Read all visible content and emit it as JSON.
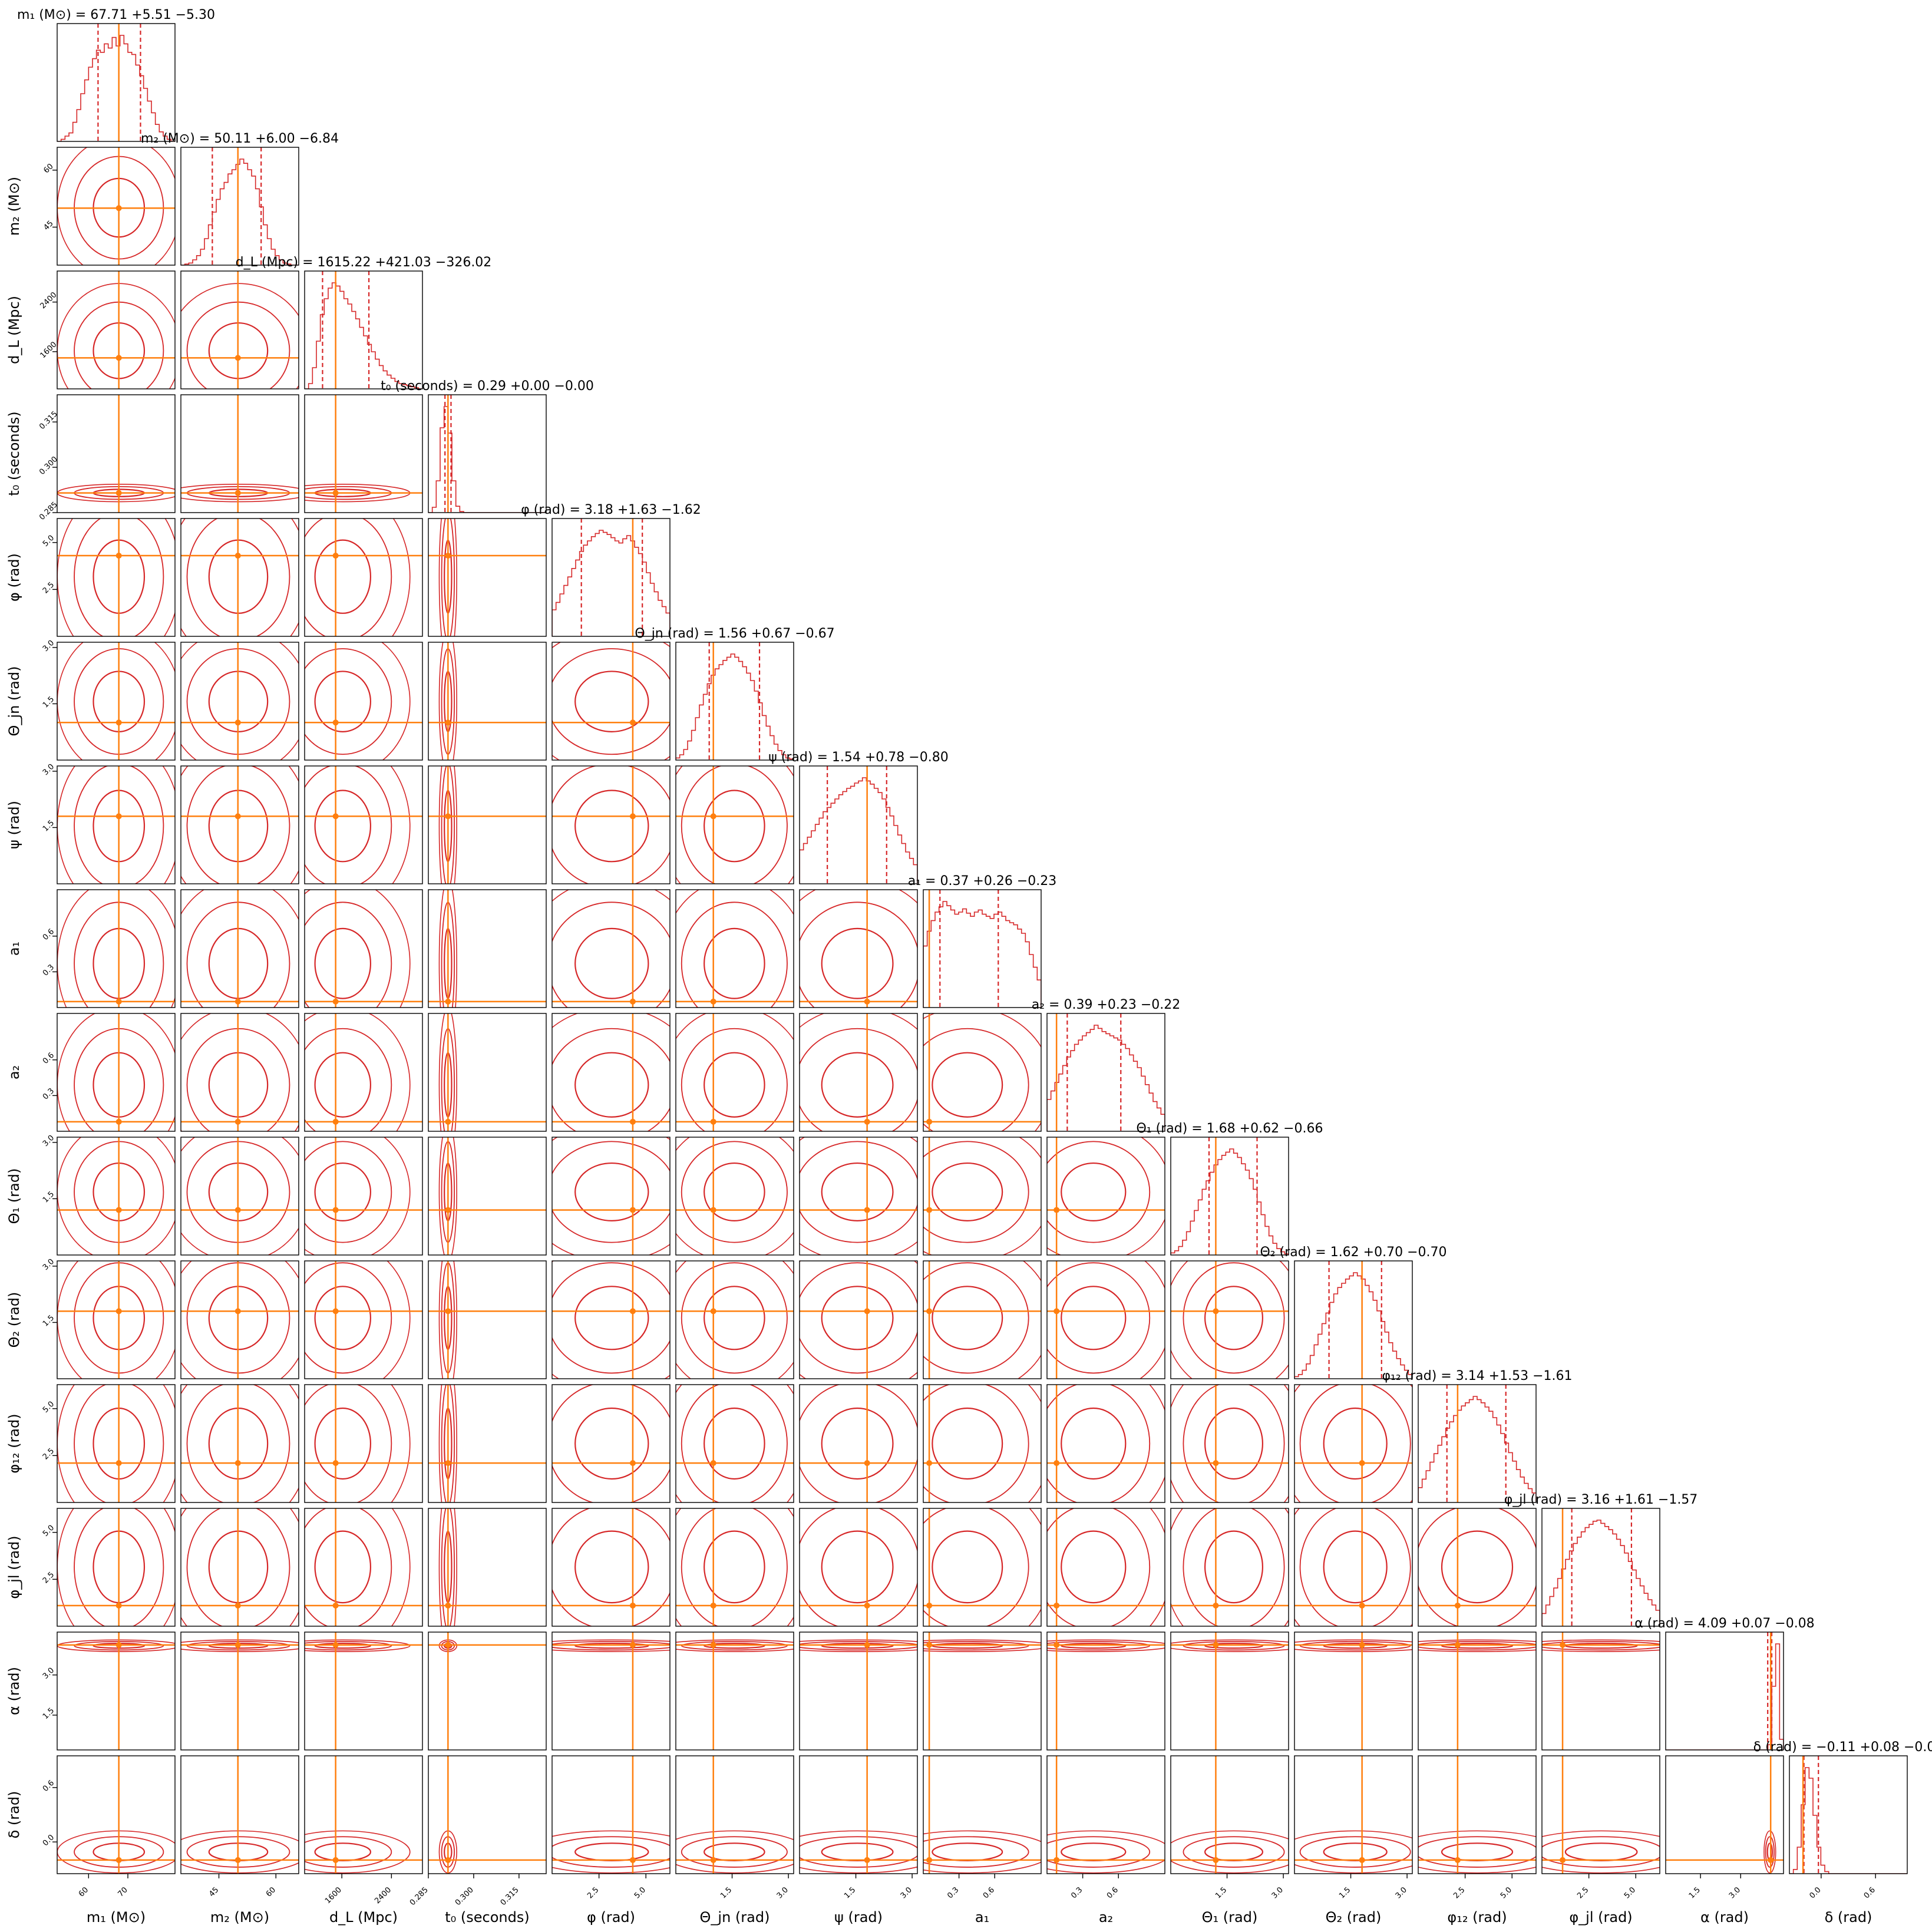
{
  "chart_data": {
    "type": "corner",
    "colors": {
      "posterior": "#d62728",
      "truth": "#ff7f0e",
      "frame": "#000000"
    },
    "parameters": [
      {
        "axis_label": "m₁ (M⊙)",
        "title": "m₁ (M⊙) = 67.71 +5.51 −5.30",
        "range": [
          52,
          82
        ],
        "ticks": [
          60,
          70
        ],
        "tick_labels": [
          "60",
          "70"
        ],
        "median": 67.71,
        "q_low": 62.41,
        "q_high": 73.22,
        "truth": 67.7,
        "hist": [
          0,
          0.02,
          0.05,
          0.08,
          0.18,
          0.3,
          0.45,
          0.58,
          0.7,
          0.78,
          0.86,
          0.84,
          0.92,
          0.88,
          0.98,
          0.9,
          1.0,
          0.92,
          0.84,
          0.82,
          0.72,
          0.62,
          0.5,
          0.38,
          0.27,
          0.16,
          0.09,
          0.05,
          0.02,
          0
        ]
      },
      {
        "axis_label": "m₂ (M⊙)",
        "title": "m₂ (M⊙) = 50.11 +6.00 −6.84",
        "range": [
          35,
          66
        ],
        "ticks": [
          45,
          60
        ],
        "tick_labels": [
          "45",
          "60"
        ],
        "median": 50.11,
        "q_low": 43.27,
        "q_high": 56.11,
        "truth": 50.0,
        "hist": [
          0,
          0.01,
          0.02,
          0.05,
          0.09,
          0.15,
          0.25,
          0.38,
          0.5,
          0.62,
          0.72,
          0.78,
          0.86,
          0.9,
          0.95,
          1.0,
          0.96,
          0.9,
          0.84,
          0.72,
          0.55,
          0.38,
          0.25,
          0.15,
          0.09,
          0.05,
          0.02,
          0.01,
          0,
          0
        ]
      },
      {
        "axis_label": "d_L (Mpc)",
        "title": "d_L (Mpc) = 1615.22 +421.03 −326.02",
        "range": [
          1000,
          2900
        ],
        "ticks": [
          1600,
          2400
        ],
        "tick_labels": [
          "1600",
          "2400"
        ],
        "median": 1615.22,
        "q_low": 1289.2,
        "q_high": 2036.25,
        "truth": 1500,
        "hist": [
          0,
          0.05,
          0.2,
          0.45,
          0.7,
          0.85,
          0.95,
          1.0,
          0.97,
          0.92,
          0.85,
          0.8,
          0.73,
          0.66,
          0.58,
          0.5,
          0.42,
          0.35,
          0.28,
          0.22,
          0.17,
          0.13,
          0.1,
          0.07,
          0.05,
          0.04,
          0.03,
          0.02,
          0.01,
          0
        ]
      },
      {
        "axis_label": "t₀ (seconds)",
        "title": "t₀ (seconds) = 0.29 +0.00 −0.00",
        "range": [
          0.285,
          0.324
        ],
        "ticks": [
          0.285,
          0.3,
          0.315
        ],
        "tick_labels": [
          "0.285",
          "0.300",
          "0.315"
        ],
        "median": 0.2915,
        "q_low": 0.2905,
        "q_high": 0.2925,
        "truth": 0.2915,
        "hist": [
          0,
          0.05,
          0.3,
          0.8,
          1.0,
          0.75,
          0.3,
          0.06,
          0.01,
          0,
          0,
          0,
          0,
          0,
          0,
          0,
          0,
          0,
          0,
          0,
          0,
          0,
          0,
          0,
          0,
          0,
          0,
          0,
          0,
          0
        ]
      },
      {
        "axis_label": "φ (rad)",
        "title": "φ (rad) = 3.18 +1.63 −1.62",
        "range": [
          0,
          6.28
        ],
        "ticks": [
          2.5,
          5.0
        ],
        "tick_labels": [
          "2.5",
          "5.0"
        ],
        "median": 3.18,
        "q_low": 1.56,
        "q_high": 4.81,
        "truth": 4.3,
        "hist": [
          0.25,
          0.32,
          0.4,
          0.48,
          0.56,
          0.64,
          0.72,
          0.8,
          0.86,
          0.9,
          0.94,
          0.97,
          1.0,
          0.98,
          0.96,
          0.93,
          0.9,
          0.88,
          0.92,
          0.95,
          0.9,
          0.84,
          0.78,
          0.7,
          0.6,
          0.5,
          0.42,
          0.34,
          0.28,
          0.22
        ]
      },
      {
        "axis_label": "Θ_jn (rad)",
        "title": "Θ_jn (rad) = 1.56 +0.67 −0.67",
        "range": [
          0,
          3.14
        ],
        "ticks": [
          1.5,
          3.0
        ],
        "tick_labels": [
          "1.5",
          "3.0"
        ],
        "median": 1.56,
        "q_low": 0.89,
        "q_high": 2.23,
        "truth": 1.0,
        "hist": [
          0.02,
          0.05,
          0.1,
          0.18,
          0.28,
          0.4,
          0.52,
          0.62,
          0.72,
          0.8,
          0.86,
          0.9,
          0.94,
          0.97,
          1.0,
          0.97,
          0.93,
          0.88,
          0.82,
          0.75,
          0.65,
          0.54,
          0.42,
          0.32,
          0.23,
          0.15,
          0.09,
          0.05,
          0.02,
          0.01
        ]
      },
      {
        "axis_label": "ψ (rad)",
        "title": "ψ (rad) = 1.54 +0.78 −0.80",
        "range": [
          0,
          3.14
        ],
        "ticks": [
          1.5,
          3.0
        ],
        "tick_labels": [
          "1.5",
          "3.0"
        ],
        "median": 1.54,
        "q_low": 0.74,
        "q_high": 2.32,
        "truth": 1.8,
        "hist": [
          0.32,
          0.38,
          0.44,
          0.5,
          0.56,
          0.62,
          0.68,
          0.72,
          0.76,
          0.8,
          0.84,
          0.87,
          0.9,
          0.92,
          0.95,
          0.97,
          1.0,
          0.97,
          0.94,
          0.9,
          0.86,
          0.8,
          0.72,
          0.64,
          0.55,
          0.46,
          0.38,
          0.3,
          0.24,
          0.18
        ]
      },
      {
        "axis_label": "a₁",
        "title": "a₁ = 0.37 +0.26 −0.23",
        "range": [
          0,
          0.99
        ],
        "ticks": [
          0.3,
          0.6
        ],
        "tick_labels": [
          "0.3",
          "0.6"
        ],
        "median": 0.37,
        "q_low": 0.14,
        "q_high": 0.63,
        "truth": 0.05,
        "hist": [
          0.58,
          0.72,
          0.82,
          0.9,
          0.95,
          1.0,
          0.96,
          0.92,
          0.88,
          0.9,
          0.93,
          0.89,
          0.86,
          0.9,
          0.92,
          0.88,
          0.86,
          0.84,
          0.88,
          0.9,
          0.86,
          0.82,
          0.8,
          0.78,
          0.74,
          0.7,
          0.62,
          0.5,
          0.38,
          0.26
        ]
      },
      {
        "axis_label": "a₂",
        "title": "a₂ = 0.39 +0.23 −0.22",
        "range": [
          0,
          0.99
        ],
        "ticks": [
          0.3,
          0.6
        ],
        "tick_labels": [
          "0.3",
          "0.6"
        ],
        "median": 0.39,
        "q_low": 0.17,
        "q_high": 0.62,
        "truth": 0.08,
        "hist": [
          0.3,
          0.38,
          0.46,
          0.54,
          0.62,
          0.7,
          0.76,
          0.82,
          0.86,
          0.9,
          0.93,
          0.96,
          1.0,
          0.97,
          0.94,
          0.92,
          0.9,
          0.88,
          0.86,
          0.82,
          0.78,
          0.72,
          0.66,
          0.6,
          0.52,
          0.44,
          0.36,
          0.28,
          0.22,
          0.16
        ]
      },
      {
        "axis_label": "Θ₁ (rad)",
        "title": "Θ₁ (rad) = 1.68 +0.62 −0.66",
        "range": [
          0,
          3.14
        ],
        "ticks": [
          1.5,
          3.0
        ],
        "tick_labels": [
          "1.5",
          "3.0"
        ],
        "median": 1.68,
        "q_low": 1.02,
        "q_high": 2.3,
        "truth": 1.2,
        "hist": [
          0.02,
          0.04,
          0.08,
          0.14,
          0.22,
          0.32,
          0.42,
          0.52,
          0.62,
          0.7,
          0.78,
          0.85,
          0.9,
          0.94,
          0.97,
          1.0,
          0.96,
          0.92,
          0.86,
          0.8,
          0.72,
          0.62,
          0.5,
          0.38,
          0.27,
          0.18,
          0.11,
          0.06,
          0.03,
          0.01
        ]
      },
      {
        "axis_label": "Θ₂ (rad)",
        "title": "Θ₂ (rad) = 1.62 +0.70 −0.70",
        "range": [
          0,
          3.14
        ],
        "ticks": [
          1.5,
          3.0
        ],
        "tick_labels": [
          "1.5",
          "3.0"
        ],
        "median": 1.62,
        "q_low": 0.92,
        "q_high": 2.32,
        "truth": 1.8,
        "hist": [
          0.02,
          0.04,
          0.08,
          0.14,
          0.22,
          0.32,
          0.42,
          0.52,
          0.62,
          0.72,
          0.8,
          0.86,
          0.9,
          0.94,
          0.97,
          1.0,
          0.97,
          0.94,
          0.88,
          0.82,
          0.74,
          0.64,
          0.54,
          0.44,
          0.34,
          0.26,
          0.19,
          0.13,
          0.08,
          0.04
        ]
      },
      {
        "axis_label": "φ₁₂ (rad)",
        "title": "φ₁₂ (rad) = 3.14 +1.53 −1.61",
        "range": [
          0,
          6.28
        ],
        "ticks": [
          2.5,
          5.0
        ],
        "tick_labels": [
          "2.5",
          "5.0"
        ],
        "median": 3.14,
        "q_low": 1.53,
        "q_high": 4.67,
        "truth": 2.1,
        "hist": [
          0.14,
          0.22,
          0.3,
          0.38,
          0.46,
          0.54,
          0.62,
          0.7,
          0.76,
          0.82,
          0.87,
          0.91,
          0.94,
          0.97,
          1.0,
          0.97,
          0.94,
          0.9,
          0.86,
          0.8,
          0.73,
          0.65,
          0.56,
          0.47,
          0.39,
          0.31,
          0.24,
          0.18,
          0.13,
          0.09
        ]
      },
      {
        "axis_label": "φ_jl (rad)",
        "title": "φ_jl (rad) = 3.16 +1.61 −1.57",
        "range": [
          0,
          6.28
        ],
        "ticks": [
          2.5,
          5.0
        ],
        "tick_labels": [
          "2.5",
          "5.0"
        ],
        "median": 3.16,
        "q_low": 1.59,
        "q_high": 4.77,
        "truth": 1.1,
        "hist": [
          0.12,
          0.2,
          0.28,
          0.36,
          0.45,
          0.54,
          0.63,
          0.71,
          0.78,
          0.84,
          0.89,
          0.93,
          0.96,
          0.99,
          1.0,
          0.97,
          0.94,
          0.91,
          0.87,
          0.82,
          0.76,
          0.69,
          0.61,
          0.53,
          0.45,
          0.38,
          0.31,
          0.25,
          0.2,
          0.15
        ]
      },
      {
        "axis_label": "α (rad)",
        "title": "α (rad) = 4.09 +0.07 −0.08",
        "range": [
          0.2,
          4.6
        ],
        "ticks": [
          1.5,
          3.0
        ],
        "tick_labels": [
          "1.5",
          "3.0"
        ],
        "median": 4.09,
        "q_low": 4.01,
        "q_high": 4.16,
        "truth": 4.12,
        "hist": [
          0,
          0,
          0,
          0,
          0,
          0,
          0,
          0,
          0,
          0,
          0,
          0,
          0,
          0,
          0,
          0,
          0,
          0,
          0,
          0,
          0,
          0,
          0,
          0,
          0,
          0,
          0.05,
          0.6,
          1.0,
          0.1
        ]
      },
      {
        "axis_label": "δ (rad)",
        "title": "δ (rad) = −0.11 +0.08 −0.08",
        "range": [
          -0.35,
          0.95
        ],
        "ticks": [
          0.0,
          0.6
        ],
        "tick_labels": [
          "0.0",
          "0.6"
        ],
        "median": -0.11,
        "q_low": -0.19,
        "q_high": -0.03,
        "truth": -0.2,
        "hist": [
          0,
          0.04,
          0.25,
          0.65,
          1.0,
          0.9,
          0.55,
          0.25,
          0.08,
          0.02,
          0,
          0,
          0,
          0,
          0,
          0,
          0,
          0,
          0,
          0,
          0,
          0,
          0,
          0,
          0,
          0,
          0,
          0,
          0,
          0
        ]
      }
    ]
  }
}
